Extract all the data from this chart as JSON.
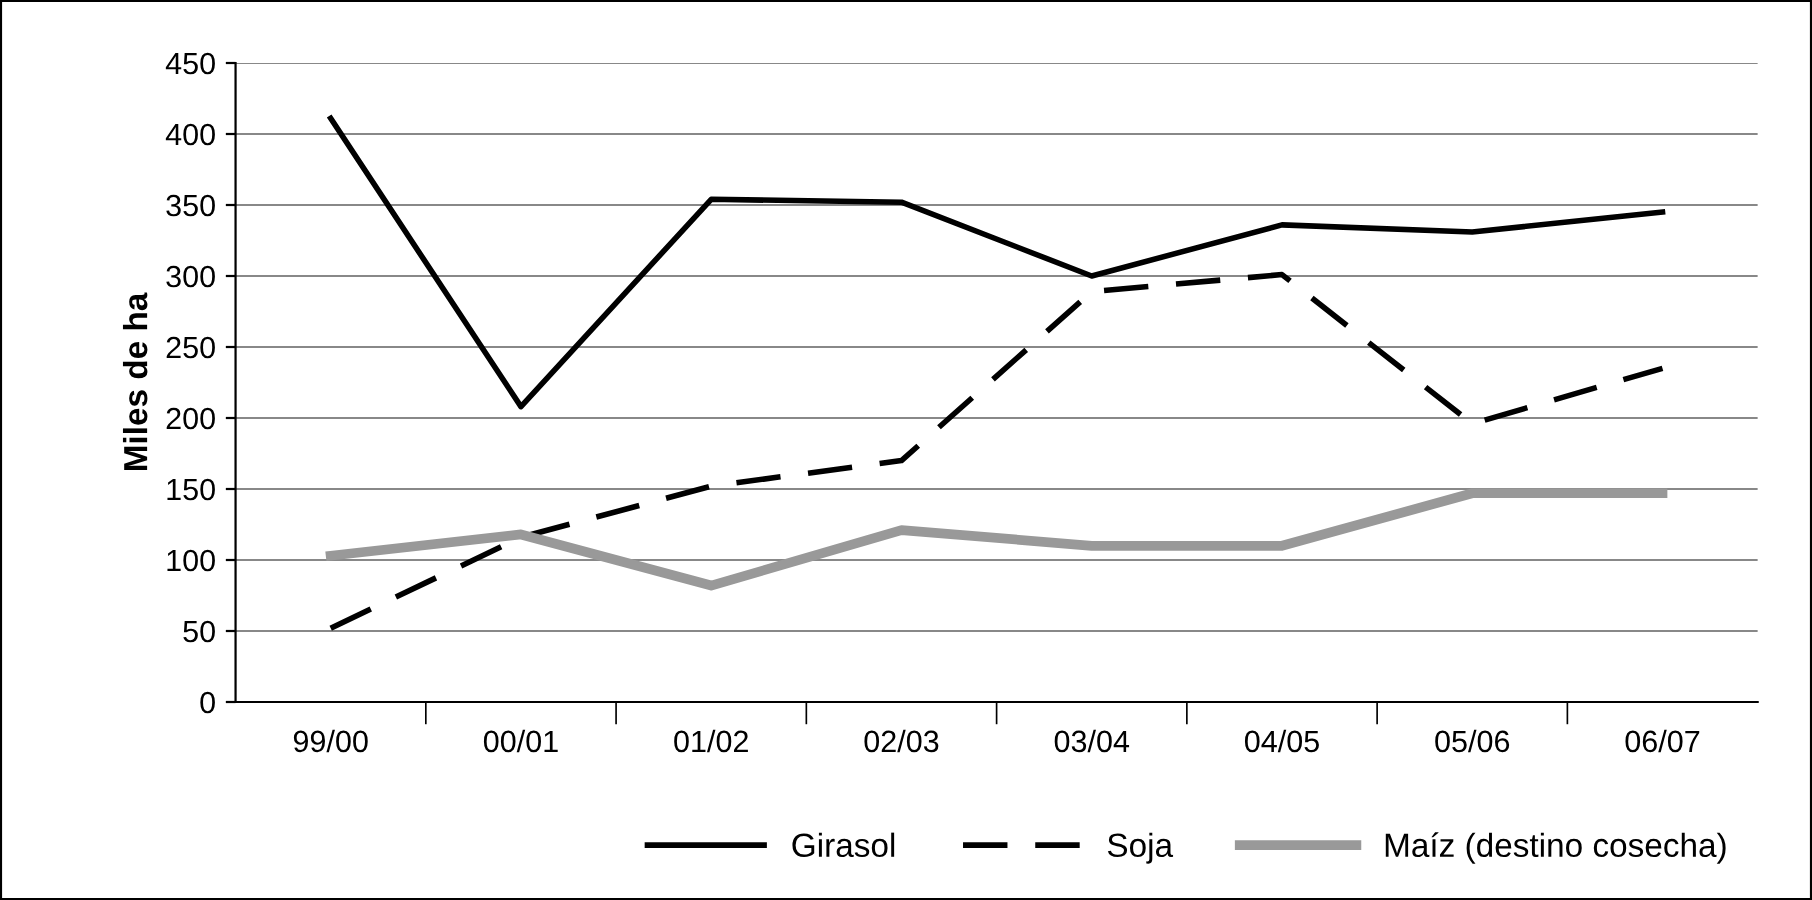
{
  "chart_data": {
    "type": "line",
    "ylabel": "Miles de ha",
    "categories": [
      "99/00",
      "00/01",
      "01/02",
      "02/03",
      "03/04",
      "04/05",
      "05/06",
      "06/07"
    ],
    "series": [
      {
        "name": "Girasol",
        "color": "#000000",
        "line_style": "solid",
        "values": [
          411,
          208,
          354,
          352,
          300,
          336,
          331,
          345
        ]
      },
      {
        "name": "Soja",
        "color": "#000000",
        "line_style": "dashed",
        "values": [
          52,
          116,
          152,
          170,
          289,
          301,
          196,
          235
        ]
      },
      {
        "name": "Maíz (destino cosecha)",
        "color": "#999999",
        "line_style": "solid",
        "values": [
          103,
          118,
          82,
          121,
          110,
          110,
          147,
          147
        ]
      }
    ],
    "ylim": [
      0,
      450
    ],
    "yticks": [
      0,
      50,
      100,
      150,
      200,
      250,
      300,
      350,
      400,
      450
    ],
    "grid": "y",
    "legend": "bottom",
    "marker": "none"
  }
}
